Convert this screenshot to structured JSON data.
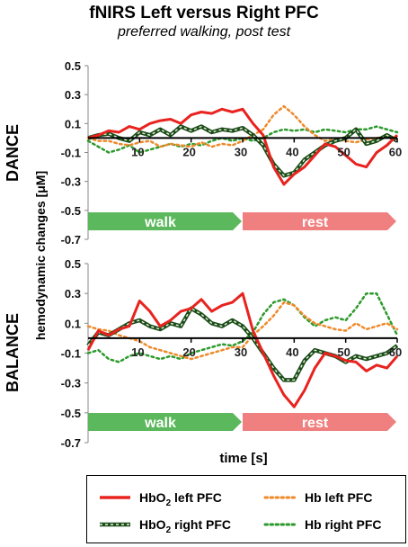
{
  "title": "fNIRS Left versus Right PFC",
  "subtitle": "preferred walking, post test",
  "colors": {
    "hbo2_left": "#e8231f",
    "hbo2_right": "#1d4d1a",
    "hb_left": "#ef8a2a",
    "hb_right": "#2d9a2d",
    "walk": "#5cb85c",
    "rest": "#f08080"
  },
  "legend": {
    "hbo2_left": {
      "pre": "HbO",
      "sub": "2",
      "post": " left PFC"
    },
    "hbo2_right": {
      "pre": "HbO",
      "sub": "2",
      "post": " right PFC"
    },
    "hb_left": "Hb left PFC",
    "hb_right": "Hb right PFC"
  },
  "chart_data": [
    {
      "type": "line",
      "panel_label": "DANCE",
      "ylabel": "hemodynamic changes [μM]",
      "xlabel": "",
      "xlim": [
        0,
        60
      ],
      "ylim": [
        -0.7,
        0.5
      ],
      "yticks": [
        "0.5",
        "0.3",
        "0.1",
        "-0.1",
        "-0.3",
        "-0.5",
        "-0.7"
      ],
      "xticks": [
        "10",
        "20",
        "30",
        "40",
        "50",
        "60"
      ],
      "phases": [
        {
          "label": "walk",
          "from": 0,
          "to": 30
        },
        {
          "label": "rest",
          "from": 30,
          "to": 60
        }
      ],
      "x": [
        0,
        2,
        4,
        6,
        8,
        10,
        12,
        14,
        16,
        18,
        20,
        22,
        24,
        26,
        28,
        30,
        32,
        34,
        36,
        38,
        40,
        42,
        44,
        46,
        48,
        50,
        52,
        54,
        56,
        58,
        60
      ],
      "series": [
        {
          "key": "hbo2_left",
          "values": [
            0.0,
            0.02,
            0.05,
            0.04,
            0.08,
            0.06,
            0.1,
            0.12,
            0.13,
            0.1,
            0.16,
            0.18,
            0.17,
            0.2,
            0.18,
            0.2,
            0.1,
            0.02,
            -0.2,
            -0.32,
            -0.25,
            -0.2,
            -0.12,
            -0.04,
            -0.06,
            -0.12,
            -0.18,
            -0.2,
            -0.1,
            -0.05,
            0.02
          ]
        },
        {
          "key": "hbo2_right",
          "values": [
            0.0,
            0.02,
            0.03,
            0.0,
            -0.02,
            0.04,
            0.02,
            0.06,
            0.02,
            0.08,
            0.05,
            0.08,
            0.04,
            0.06,
            0.05,
            0.07,
            0.02,
            -0.05,
            -0.18,
            -0.26,
            -0.24,
            -0.15,
            -0.1,
            -0.05,
            -0.02,
            0.0,
            0.06,
            -0.04,
            -0.02,
            0.02,
            -0.02
          ]
        },
        {
          "key": "hb_left",
          "values": [
            0.0,
            -0.02,
            -0.02,
            -0.04,
            -0.05,
            -0.03,
            -0.02,
            -0.06,
            -0.04,
            -0.05,
            -0.06,
            -0.03,
            -0.06,
            -0.04,
            -0.05,
            -0.02,
            0.02,
            0.06,
            0.16,
            0.22,
            0.16,
            0.08,
            0.02,
            -0.02,
            -0.01,
            -0.02,
            -0.03,
            -0.01,
            0.0,
            0.01,
            0.0
          ]
        },
        {
          "key": "hb_right",
          "values": [
            -0.02,
            -0.06,
            -0.1,
            -0.08,
            -0.05,
            -0.1,
            -0.08,
            -0.06,
            -0.04,
            -0.06,
            -0.04,
            -0.05,
            -0.02,
            0.0,
            -0.02,
            0.0,
            -0.02,
            0.0,
            0.04,
            0.06,
            0.05,
            0.06,
            0.04,
            0.06,
            0.05,
            0.04,
            0.06,
            0.06,
            0.08,
            0.06,
            0.04
          ]
        }
      ]
    },
    {
      "type": "line",
      "panel_label": "BALANCE",
      "ylabel": "",
      "xlabel": "time [s]",
      "xlim": [
        0,
        60
      ],
      "ylim": [
        -0.7,
        0.5
      ],
      "yticks": [
        "0.5",
        "0.3",
        "0.1",
        "-0.1",
        "-0.3",
        "-0.5",
        "-0.7"
      ],
      "xticks": [
        "10",
        "20",
        "30",
        "40",
        "50",
        "60"
      ],
      "phases": [
        {
          "label": "walk",
          "from": 0,
          "to": 30
        },
        {
          "label": "rest",
          "from": 30,
          "to": 60
        }
      ],
      "x": [
        0,
        2,
        4,
        6,
        8,
        10,
        12,
        14,
        16,
        18,
        20,
        22,
        24,
        26,
        28,
        30,
        32,
        34,
        36,
        38,
        40,
        42,
        44,
        46,
        48,
        50,
        52,
        54,
        56,
        58,
        60
      ],
      "series": [
        {
          "key": "hbo2_left",
          "values": [
            -0.08,
            0.05,
            0.02,
            0.06,
            0.08,
            0.25,
            0.18,
            0.08,
            0.12,
            0.18,
            0.2,
            0.26,
            0.18,
            0.22,
            0.24,
            0.3,
            0.05,
            -0.1,
            -0.25,
            -0.38,
            -0.46,
            -0.35,
            -0.2,
            -0.1,
            -0.12,
            -0.15,
            -0.16,
            -0.22,
            -0.18,
            -0.2,
            -0.12
          ]
        },
        {
          "key": "hbo2_right",
          "values": [
            -0.05,
            0.04,
            0.02,
            0.06,
            0.1,
            0.12,
            0.08,
            0.06,
            0.1,
            0.08,
            0.2,
            0.16,
            0.1,
            0.08,
            0.12,
            0.08,
            0.0,
            -0.1,
            -0.2,
            -0.28,
            -0.28,
            -0.15,
            -0.08,
            -0.1,
            -0.12,
            -0.16,
            -0.12,
            -0.14,
            -0.12,
            -0.1,
            -0.05
          ]
        },
        {
          "key": "hb_left",
          "values": [
            0.08,
            0.06,
            0.05,
            0.02,
            0.0,
            -0.02,
            -0.06,
            -0.08,
            -0.1,
            -0.12,
            -0.14,
            -0.12,
            -0.1,
            -0.08,
            -0.06,
            -0.06,
            0.02,
            0.08,
            0.15,
            0.24,
            0.22,
            0.15,
            0.1,
            0.08,
            0.06,
            0.05,
            0.1,
            0.06,
            0.08,
            0.1,
            0.06
          ]
        },
        {
          "key": "hb_right",
          "values": [
            -0.1,
            -0.08,
            -0.14,
            -0.16,
            -0.12,
            -0.1,
            -0.12,
            -0.14,
            -0.12,
            -0.14,
            -0.1,
            -0.08,
            -0.06,
            -0.04,
            -0.05,
            -0.02,
            0.04,
            0.16,
            0.24,
            0.26,
            0.22,
            0.14,
            0.08,
            0.12,
            0.14,
            0.12,
            0.2,
            0.3,
            0.3,
            0.16,
            0.02
          ]
        }
      ]
    }
  ]
}
